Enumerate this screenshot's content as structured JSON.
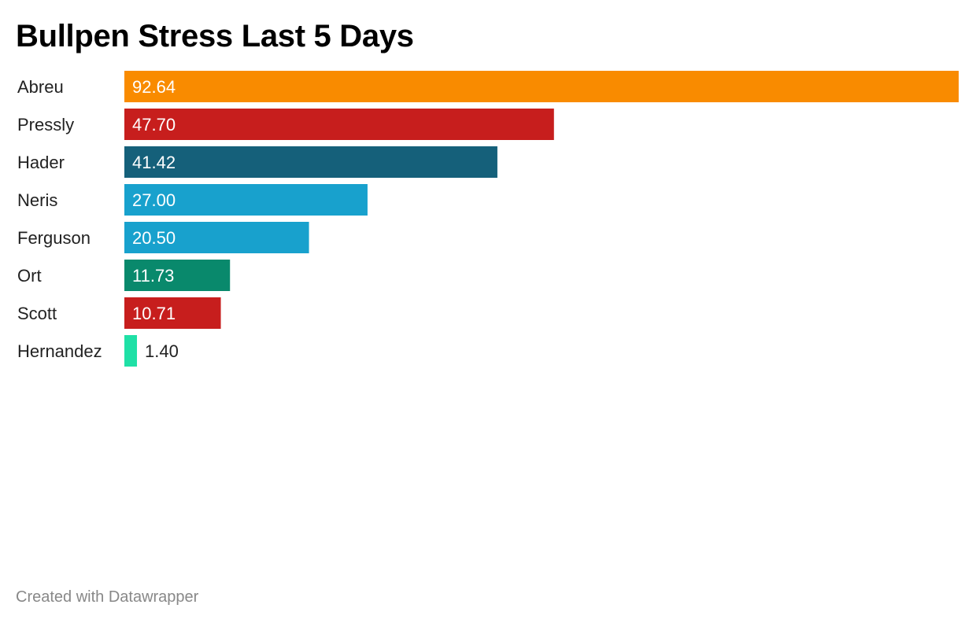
{
  "chart_data": {
    "type": "bar",
    "orientation": "horizontal",
    "title": "Bullpen Stress Last 5 Days",
    "categories": [
      "Abreu",
      "Pressly",
      "Hader",
      "Neris",
      "Ferguson",
      "Ort",
      "Scott",
      "Hernandez"
    ],
    "values": [
      92.64,
      47.7,
      41.42,
      27.0,
      20.5,
      11.73,
      10.71,
      1.4
    ],
    "value_labels": [
      "92.64",
      "47.70",
      "41.42",
      "27.00",
      "20.50",
      "11.73",
      "10.71",
      "1.40"
    ],
    "colors": [
      "#f98b00",
      "#c71e1d",
      "#15607a",
      "#18a1cd",
      "#18a1cd",
      "#09896c",
      "#c71e1d",
      "#1fe0a6"
    ],
    "xlim": [
      0,
      92.64
    ],
    "grid": false,
    "legend": "none"
  },
  "footer": {
    "credit": "Created with Datawrapper"
  }
}
